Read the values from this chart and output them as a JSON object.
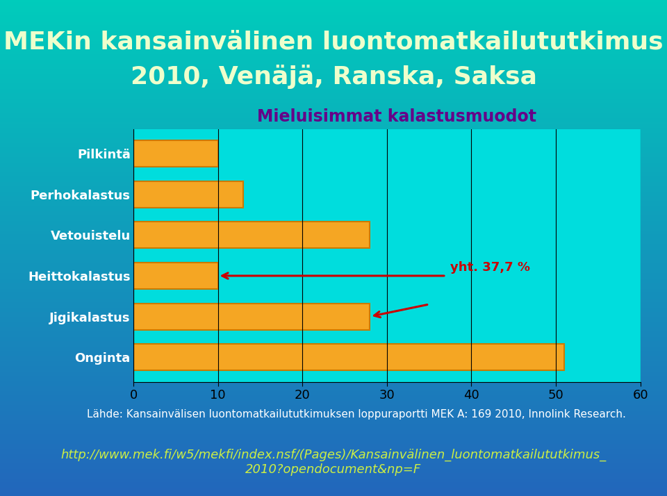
{
  "title_line1": "MEKin kansainvälinen luontomatkailututkimus",
  "title_line2": "2010, Venäjä, Ranska, Saksa",
  "chart_title": "Mieluisimmat kalastusmuodot",
  "categories": [
    "Pilkintä",
    "Perhokalastus",
    "Vetouistelu",
    "Heittokalastus",
    "Jigikalastus",
    "Onginta"
  ],
  "values": [
    10,
    13,
    28,
    10,
    28,
    51
  ],
  "bar_color": "#F5A623",
  "bar_edge_color": "#CC7A00",
  "chart_bg": "#00DDDD",
  "chart_frame_bg": "#AACCDD",
  "outer_bg_top": "#00CCBB",
  "outer_bg_bottom": "#2266BB",
  "bottom_bg": "#1155AA",
  "xlim": [
    0,
    60
  ],
  "xticks": [
    0,
    10,
    20,
    30,
    40,
    50,
    60
  ],
  "annotation_text": "yht. 37,7 %",
  "annotation_color": "#CC0000",
  "arrow_color": "#CC0000",
  "source_text": "Lähde: Kansainvälisen luontomatkailututkimuksen loppuraportti MEK A: 169 2010, Innolink Research.",
  "url_text": "http://www.mek.fi/w5/mekfi/index.nsf/(Pages)/Kansainvälinen_luontomatkailututkimus_\n2010?opendocument&np=F",
  "title_color": "#EEFFCC",
  "chart_title_color": "#660088",
  "source_color": "#FFFFFF",
  "url_color": "#CCEE44",
  "title_fontsize": 26,
  "chart_title_fontsize": 17,
  "tick_fontsize": 13,
  "ytick_fontsize": 13,
  "source_fontsize": 11,
  "url_fontsize": 13
}
